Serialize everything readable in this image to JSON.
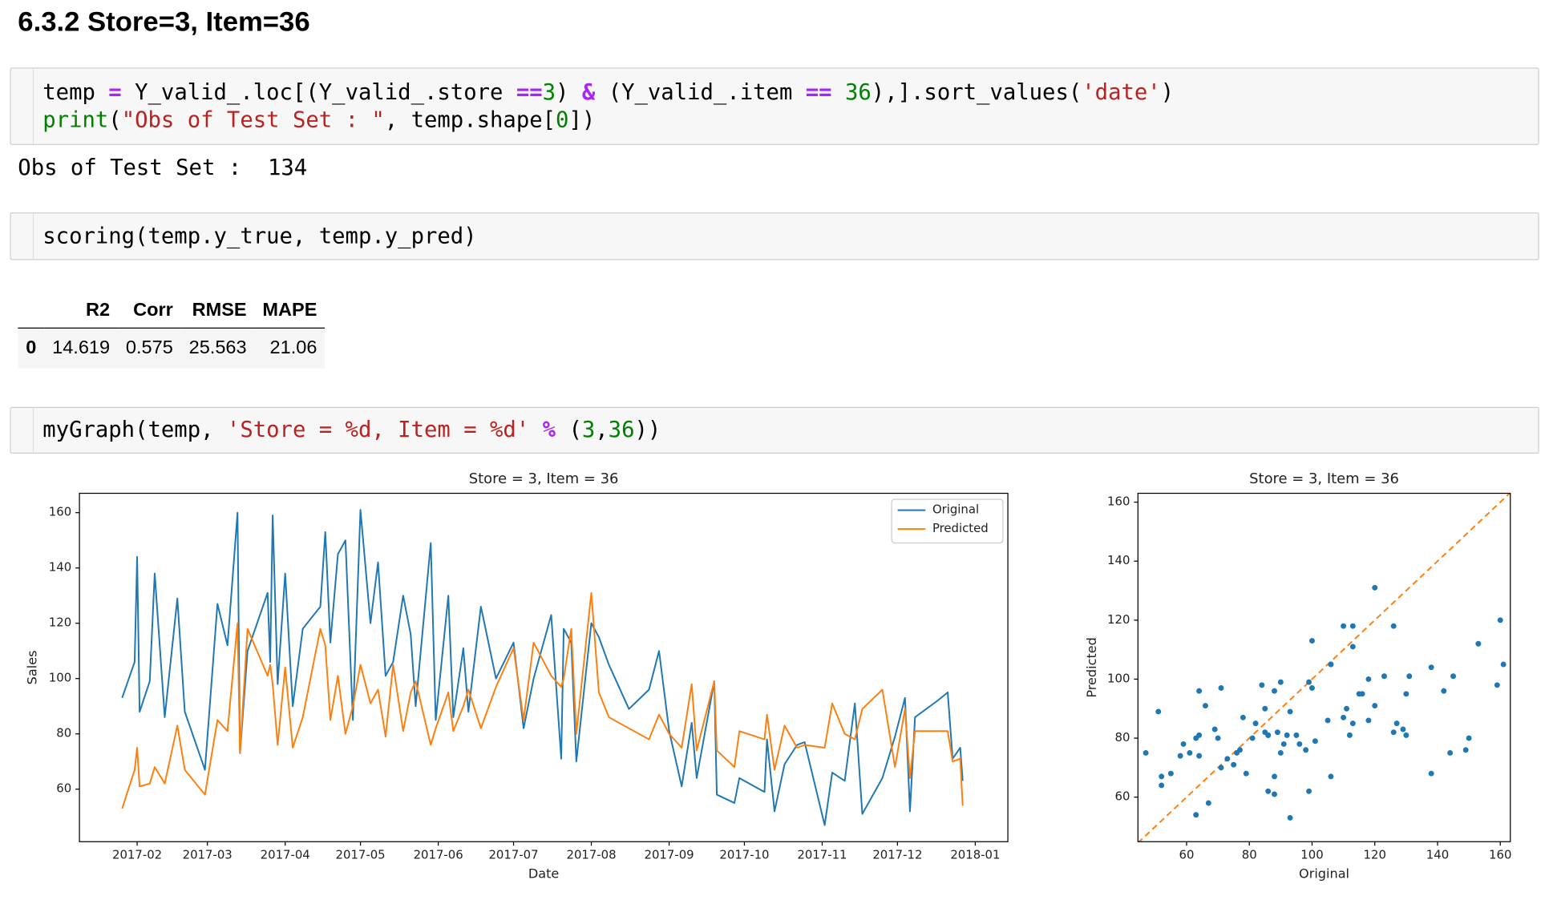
{
  "notebook": {
    "heading": "6.3.2  Store=3, Item=36",
    "cells": [
      {
        "code": [
          [
            "temp ",
            "=",
            " Y_valid_.loc[(Y_valid_.store ",
            "==",
            "3",
            ") ",
            "&",
            " (Y_valid_.item ",
            "==",
            " ",
            "36",
            "),].sort_values(",
            "'date'",
            ")"
          ],
          [
            "print",
            "(",
            "\"Obs of Test Set : \"",
            ", temp.shape[",
            "0",
            "])"
          ]
        ],
        "output": "Obs of Test Set :  134"
      },
      {
        "code": [
          [
            "scoring(temp.y_true, temp.y_pred)"
          ]
        ]
      },
      {
        "code": [
          [
            "myGraph(temp, ",
            "'Store = %d, Item = %d'",
            " ",
            "%",
            " (",
            "3",
            ",",
            "36",
            "))"
          ]
        ]
      }
    ],
    "table": {
      "columns": [
        "R2",
        "Corr",
        "RMSE",
        "MAPE"
      ],
      "rows": [
        {
          "index": "0",
          "cells": [
            "14.619",
            "0.575",
            "25.563",
            "21.06"
          ]
        }
      ]
    }
  },
  "chart_data": [
    {
      "type": "line",
      "title": "Store = 3, Item = 36",
      "x_label": "Date",
      "y_label": "Sales",
      "x": [
        26,
        31,
        32,
        33,
        37,
        39,
        43,
        48,
        51,
        59,
        64,
        68,
        72,
        73,
        76,
        84,
        85,
        86,
        88,
        91,
        94,
        98,
        105,
        107,
        109,
        112,
        115,
        118,
        121,
        125,
        128,
        131,
        134,
        138,
        141,
        143,
        149,
        151,
        156,
        158,
        162,
        164,
        169,
        175,
        182,
        186,
        190,
        197,
        201,
        202,
        205,
        207,
        213,
        216,
        220,
        228,
        236,
        240,
        244,
        249,
        253,
        255,
        262,
        263,
        270,
        272,
        282,
        283,
        286,
        290,
        295,
        298,
        306,
        309,
        314,
        318,
        321,
        329,
        334,
        338,
        340,
        342,
        351,
        355,
        357,
        360,
        361
      ],
      "series": [
        {
          "name": "Original",
          "color": "#1f77b4",
          "values": [
            93,
            106,
            144,
            88,
            99,
            138,
            86,
            129,
            88,
            67,
            127,
            112,
            160,
            73,
            110,
            131,
            106,
            159,
            98,
            138,
            90,
            118,
            126,
            153,
            113,
            145,
            150,
            85,
            161,
            120,
            142,
            101,
            106,
            130,
            116,
            90,
            149,
            85,
            130,
            86,
            111,
            88,
            126,
            100,
            113,
            82,
            100,
            123,
            71,
            118,
            113,
            70,
            120,
            115,
            105,
            89,
            96,
            110,
            81,
            61,
            84,
            64,
            99,
            58,
            55,
            64,
            59,
            78,
            52,
            69,
            76,
            77,
            47,
            66,
            63,
            91,
            51,
            64,
            79,
            93,
            52,
            86,
            92,
            95,
            71,
            75,
            63
          ]
        },
        {
          "name": "Predicted",
          "color": "#ff7f0e",
          "values": [
            53,
            67,
            75,
            61,
            62,
            68,
            62,
            83,
            67,
            58,
            85,
            81,
            120,
            73,
            118,
            101,
            105,
            98,
            76,
            104,
            75,
            86,
            118,
            112,
            85,
            101,
            80,
            90,
            105,
            91,
            96,
            79,
            105,
            81,
            95,
            99,
            76,
            82,
            95,
            81,
            90,
            96,
            82,
            97,
            111,
            85,
            113,
            101,
            97,
            100,
            118,
            80,
            131,
            95,
            86,
            82,
            78,
            87,
            80,
            75,
            98,
            74,
            99,
            74,
            68,
            81,
            78,
            87,
            67,
            83,
            75,
            76,
            75,
            91,
            80,
            78,
            89,
            96,
            68,
            89,
            64,
            81,
            81,
            81,
            70,
            71,
            54
          ]
        }
      ],
      "xlim": [
        9,
        379
      ],
      "xticks": [
        {
          "value": 32,
          "label": "2017-02"
        },
        {
          "value": 60,
          "label": "2017-03"
        },
        {
          "value": 91,
          "label": "2017-04"
        },
        {
          "value": 121,
          "label": "2017-05"
        },
        {
          "value": 152,
          "label": "2017-06"
        },
        {
          "value": 182,
          "label": "2017-07"
        },
        {
          "value": 213,
          "label": "2017-08"
        },
        {
          "value": 244,
          "label": "2017-09"
        },
        {
          "value": 274,
          "label": "2017-10"
        },
        {
          "value": 305,
          "label": "2017-11"
        },
        {
          "value": 335,
          "label": "2017-12"
        },
        {
          "value": 366,
          "label": "2018-01"
        }
      ],
      "ylim": [
        41,
        167
      ],
      "yticks": [
        60,
        80,
        100,
        120,
        140,
        160
      ],
      "legend": "upper right",
      "grid": false
    },
    {
      "type": "scatter",
      "title": "Store = 3, Item = 36",
      "x_label": "Original",
      "y_label": "Predicted",
      "color": "#1f77b4",
      "reference_line_color": "#ff7f0e",
      "x": [
        93,
        106,
        144,
        88,
        99,
        138,
        86,
        129,
        88,
        67,
        127,
        112,
        160,
        73,
        110,
        131,
        106,
        159,
        98,
        138,
        90,
        118,
        126,
        153,
        113,
        145,
        150,
        85,
        161,
        120,
        142,
        101,
        106,
        130,
        116,
        90,
        149,
        85,
        130,
        86,
        111,
        88,
        126,
        100,
        113,
        82,
        100,
        123,
        71,
        118,
        113,
        70,
        120,
        115,
        105,
        89,
        96,
        110,
        81,
        61,
        84,
        64,
        99,
        58,
        55,
        64,
        59,
        78,
        52,
        69,
        76,
        77,
        47,
        66,
        63,
        91,
        51,
        64,
        79,
        93,
        52,
        86,
        92,
        95,
        71,
        75,
        63
      ],
      "y": [
        53,
        67,
        75,
        61,
        62,
        68,
        62,
        83,
        67,
        58,
        85,
        81,
        120,
        73,
        118,
        101,
        105,
        98,
        76,
        104,
        75,
        86,
        118,
        112,
        85,
        101,
        80,
        90,
        105,
        91,
        96,
        79,
        105,
        81,
        95,
        99,
        76,
        82,
        95,
        81,
        90,
        96,
        82,
        97,
        111,
        85,
        113,
        101,
        97,
        100,
        118,
        80,
        131,
        95,
        86,
        82,
        78,
        87,
        80,
        75,
        98,
        74,
        99,
        74,
        68,
        81,
        78,
        87,
        67,
        83,
        75,
        76,
        75,
        91,
        80,
        78,
        89,
        96,
        68,
        89,
        64,
        81,
        81,
        81,
        70,
        71,
        54
      ],
      "xlim": [
        44.5,
        163.2
      ],
      "xticks": [
        60,
        80,
        100,
        120,
        140,
        160
      ],
      "ylim": [
        44.9,
        163
      ],
      "yticks": [
        60,
        80,
        100,
        120,
        140,
        160
      ],
      "grid": false
    }
  ]
}
